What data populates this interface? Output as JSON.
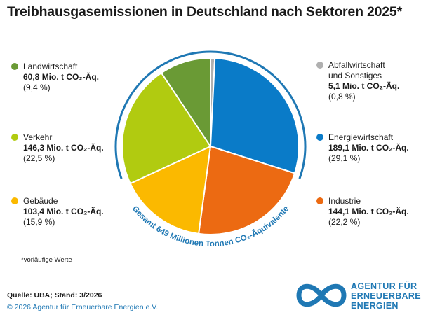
{
  "title": "Treibhausgasemissionen in Deutschland nach Sektoren 2025*",
  "chart_data": {
    "type": "pie",
    "slices": [
      {
        "name": "Abfallwirtschaft und Sonstiges",
        "name_lines": [
          "Abfallwirtschaft",
          "und Sonstiges"
        ],
        "value": 5.1,
        "value_label": "5,1 Mio. t CO₂-Äq.",
        "percent": 0.8,
        "percent_label": "(0,8 %)",
        "color": "#b0b0b0"
      },
      {
        "name": "Energiewirtschaft",
        "name_lines": [
          "Energiewirtschaft"
        ],
        "value": 189.1,
        "value_label": "189,1 Mio. t CO₂-Äq.",
        "percent": 29.1,
        "percent_label": "(29,1 %)",
        "color": "#0a7bc8"
      },
      {
        "name": "Industrie",
        "name_lines": [
          "Industrie"
        ],
        "value": 144.1,
        "value_label": "144,1 Mio. t CO₂-Äq.",
        "percent": 22.2,
        "percent_label": "(22,2 %)",
        "color": "#ec6a12"
      },
      {
        "name": "Gebäude",
        "name_lines": [
          "Gebäude"
        ],
        "value": 103.4,
        "value_label": "103,4 Mio. t CO₂-Äq.",
        "percent": 15.9,
        "percent_label": "(15,9 %)",
        "color": "#fbb900"
      },
      {
        "name": "Verkehr",
        "name_lines": [
          "Verkehr"
        ],
        "value": 146.3,
        "value_label": "146,3 Mio. t CO₂-Äq.",
        "percent": 22.5,
        "percent_label": "(22,5 %)",
        "color": "#b1cb10"
      },
      {
        "name": "Landwirtschaft",
        "name_lines": [
          "Landwirtschaft"
        ],
        "value": 60.8,
        "value_label": "60,8 Mio. t CO₂-Äq.",
        "percent": 9.4,
        "percent_label": "(9,4 %)",
        "color": "#6a9a35"
      }
    ],
    "total_label": "Gesamt 649 Millionen Tonnen CO₂-Äquivalente",
    "ring_color": "#1f78b4"
  },
  "note": "*vorläufige Werte",
  "source": "Quelle: UBA; Stand: 3/2026",
  "copyright": "© 2026 Agentur für Erneuerbare Energien e.V.",
  "logo": {
    "lines": [
      "AGENTUR FÜR",
      "ERNEUERBARE",
      "ENERGIEN"
    ],
    "color": "#1f78b4"
  }
}
